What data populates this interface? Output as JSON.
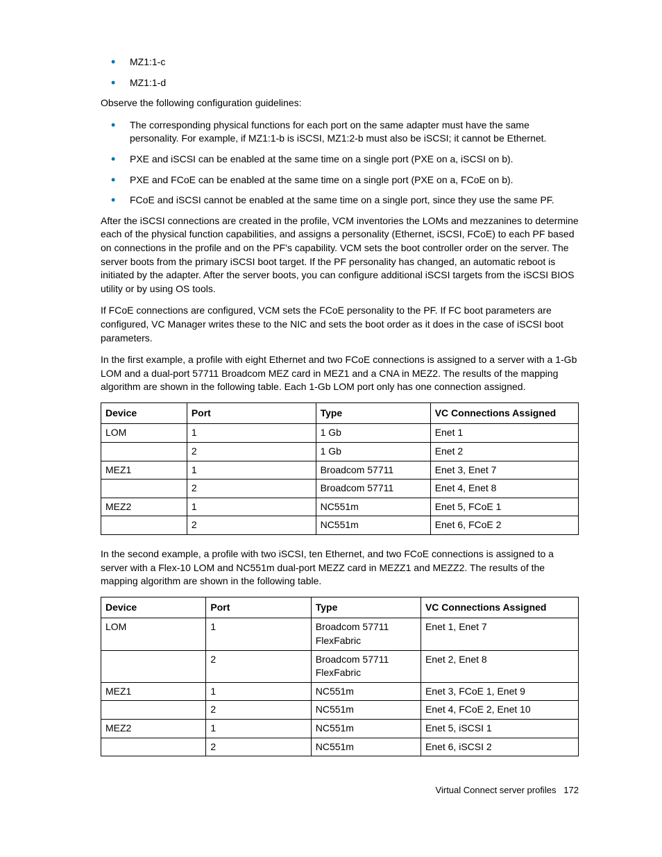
{
  "bullets1": {
    "item1": "MZ1:1-c",
    "item2": "MZ1:1-d"
  },
  "para1": "Observe the following configuration guidelines:",
  "bullets2": {
    "item1": "The corresponding physical functions for each port on the same adapter must have the same personality. For example, if MZ1:1-b is iSCSI, MZ1:2-b must also be iSCSI; it cannot be Ethernet.",
    "item2": "PXE and iSCSI can be enabled at the same time on a single port (PXE on a, iSCSI on b).",
    "item3": "PXE and FCoE can be enabled at the same time on a single port (PXE on a, FCoE on b).",
    "item4": "FCoE and iSCSI cannot be enabled at the same time on a single port, since they use the same PF."
  },
  "para2": "After the iSCSI connections are created in the profile, VCM inventories the LOMs and mezzanines to determine each of the physical function capabilities, and assigns a personality (Ethernet, iSCSI, FCoE) to each PF based on connections in the profile and on the PF's capability. VCM sets the boot controller order on the server. The server boots from the primary iSCSI boot target. If the PF personality has changed, an automatic reboot is initiated by the adapter. After the server boots, you can configure additional iSCSI targets from the iSCSI BIOS utility or by using OS tools.",
  "para3": "If FCoE connections are configured, VCM sets the FCoE personality to the PF. If FC boot parameters are configured, VC Manager writes these to the NIC and sets the boot order as it does in the case of iSCSI boot parameters.",
  "para4": "In the first example, a profile with eight Ethernet and two FCoE connections is assigned to a server with a 1-Gb LOM and a dual-port 57711 Broadcom MEZ card in MEZ1 and a CNA in MEZ2. The results of the mapping algorithm are shown in the following table. Each 1-Gb LOM port only has one connection assigned.",
  "table1": {
    "headers": {
      "c1": "Device",
      "c2": "Port",
      "c3": "Type",
      "c4": "VC Connections Assigned"
    },
    "rows": {
      "r1": {
        "c1": "LOM",
        "c2": "1",
        "c3": "1 Gb",
        "c4": "Enet 1"
      },
      "r2": {
        "c1": "",
        "c2": "2",
        "c3": "1 Gb",
        "c4": "Enet 2"
      },
      "r3": {
        "c1": "MEZ1",
        "c2": "1",
        "c3": "Broadcom 57711",
        "c4": "Enet 3, Enet 7"
      },
      "r4": {
        "c1": "",
        "c2": "2",
        "c3": "Broadcom 57711",
        "c4": "Enet 4, Enet 8"
      },
      "r5": {
        "c1": "MEZ2",
        "c2": "1",
        "c3": "NC551m",
        "c4": "Enet 5, FCoE 1"
      },
      "r6": {
        "c1": "",
        "c2": "2",
        "c3": "NC551m",
        "c4": "Enet 6, FCoE 2"
      }
    }
  },
  "para5": "In the second example, a profile with two iSCSI, ten Ethernet, and two FCoE connections is assigned to a server with a Flex-10 LOM and NC551m dual-port MEZZ card in MEZZ1 and MEZZ2. The results of the mapping algorithm are shown in the following table.",
  "table2": {
    "headers": {
      "c1": "Device",
      "c2": "Port",
      "c3": "Type",
      "c4": "VC Connections Assigned"
    },
    "rows": {
      "r1": {
        "c1": "LOM",
        "c2": "1",
        "c3": "Broadcom 57711 FlexFabric",
        "c4": "Enet 1, Enet 7"
      },
      "r2": {
        "c1": "",
        "c2": "2",
        "c3": "Broadcom 57711 FlexFabric",
        "c4": "Enet 2, Enet 8"
      },
      "r3": {
        "c1": "MEZ1",
        "c2": "1",
        "c3": "NC551m",
        "c4": "Enet 3, FCoE 1, Enet 9"
      },
      "r4": {
        "c1": "",
        "c2": "2",
        "c3": "NC551m",
        "c4": "Enet 4, FCoE 2, Enet 10"
      },
      "r5": {
        "c1": "MEZ2",
        "c2": "1",
        "c3": "NC551m",
        "c4": "Enet 5, iSCSI 1"
      },
      "r6": {
        "c1": "",
        "c2": "2",
        "c3": "NC551m",
        "c4": "Enet 6, iSCSI 2"
      }
    }
  },
  "footer": {
    "label": "Virtual Connect server profiles",
    "page": "172"
  }
}
